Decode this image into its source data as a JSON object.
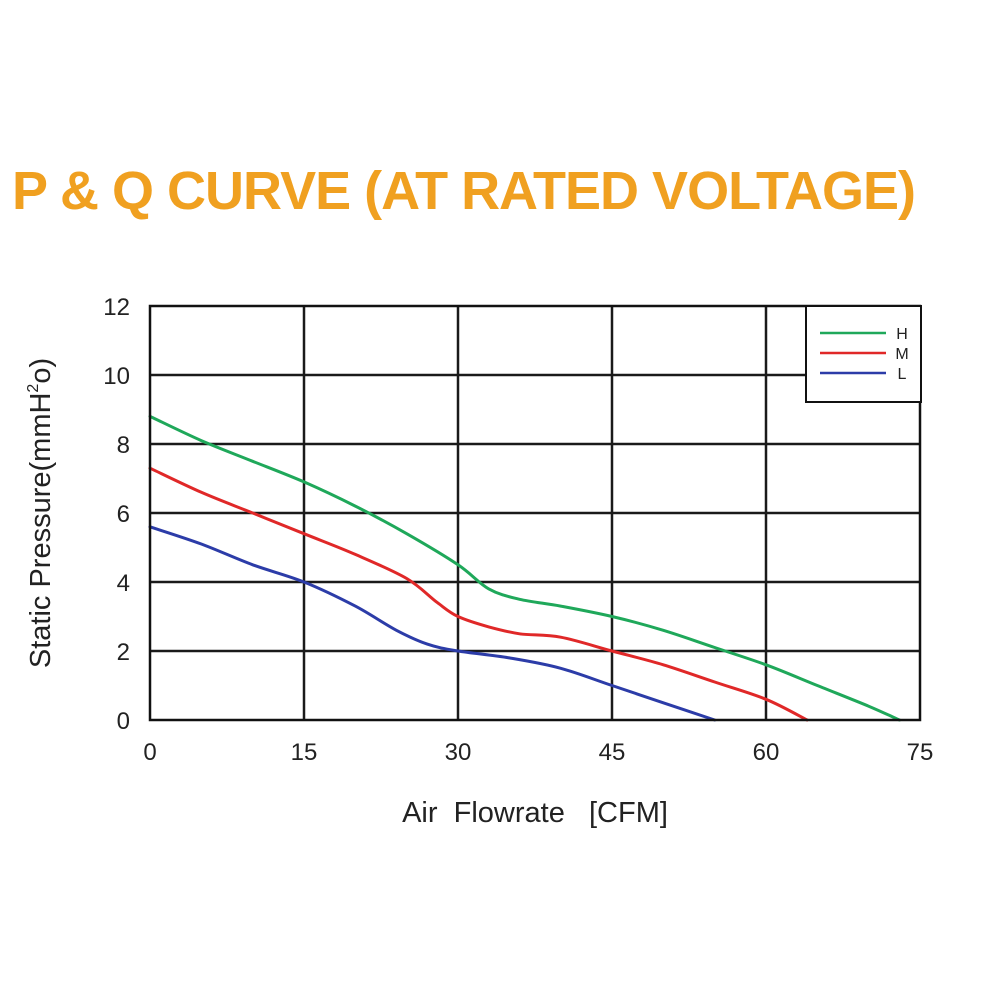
{
  "chart_data": {
    "type": "line",
    "title": "P & Q CURVE (AT RATED VOLTAGE)",
    "xlabel": "Air  Flowrate   [CFM]",
    "ylabel_main": "Static Pressure(mmH",
    "ylabel_sup": "2",
    "ylabel_tail": "o)",
    "xlim": [
      0,
      75
    ],
    "ylim": [
      0,
      12
    ],
    "xticks": [
      0,
      15,
      30,
      45,
      60,
      75
    ],
    "yticks": [
      0,
      2,
      4,
      6,
      8,
      10,
      12
    ],
    "grid": true,
    "legend_position": "top-right",
    "series": [
      {
        "name": "H",
        "color": "#1fa85a",
        "points": [
          [
            0,
            8.8
          ],
          [
            5,
            8.1
          ],
          [
            10,
            7.5
          ],
          [
            15,
            6.9
          ],
          [
            20,
            6.2
          ],
          [
            25,
            5.4
          ],
          [
            30,
            4.5
          ],
          [
            33,
            3.8
          ],
          [
            36,
            3.5
          ],
          [
            40,
            3.3
          ],
          [
            45,
            3.0
          ],
          [
            50,
            2.6
          ],
          [
            55,
            2.1
          ],
          [
            60,
            1.6
          ],
          [
            65,
            1.0
          ],
          [
            70,
            0.4
          ],
          [
            73,
            0.0
          ]
        ]
      },
      {
        "name": "M",
        "color": "#e02828",
        "points": [
          [
            0,
            7.3
          ],
          [
            5,
            6.6
          ],
          [
            10,
            6.0
          ],
          [
            15,
            5.4
          ],
          [
            20,
            4.8
          ],
          [
            25,
            4.1
          ],
          [
            28,
            3.4
          ],
          [
            30,
            3.0
          ],
          [
            33,
            2.7
          ],
          [
            36,
            2.5
          ],
          [
            40,
            2.4
          ],
          [
            45,
            2.0
          ],
          [
            50,
            1.6
          ],
          [
            55,
            1.1
          ],
          [
            60,
            0.6
          ],
          [
            64,
            0.0
          ]
        ]
      },
      {
        "name": "L",
        "color": "#2c3ca8",
        "points": [
          [
            0,
            5.6
          ],
          [
            5,
            5.1
          ],
          [
            10,
            4.5
          ],
          [
            15,
            4.0
          ],
          [
            20,
            3.3
          ],
          [
            24,
            2.6
          ],
          [
            27,
            2.2
          ],
          [
            30,
            2.0
          ],
          [
            35,
            1.8
          ],
          [
            40,
            1.5
          ],
          [
            45,
            1.0
          ],
          [
            50,
            0.5
          ],
          [
            55,
            0.0
          ]
        ]
      }
    ]
  }
}
